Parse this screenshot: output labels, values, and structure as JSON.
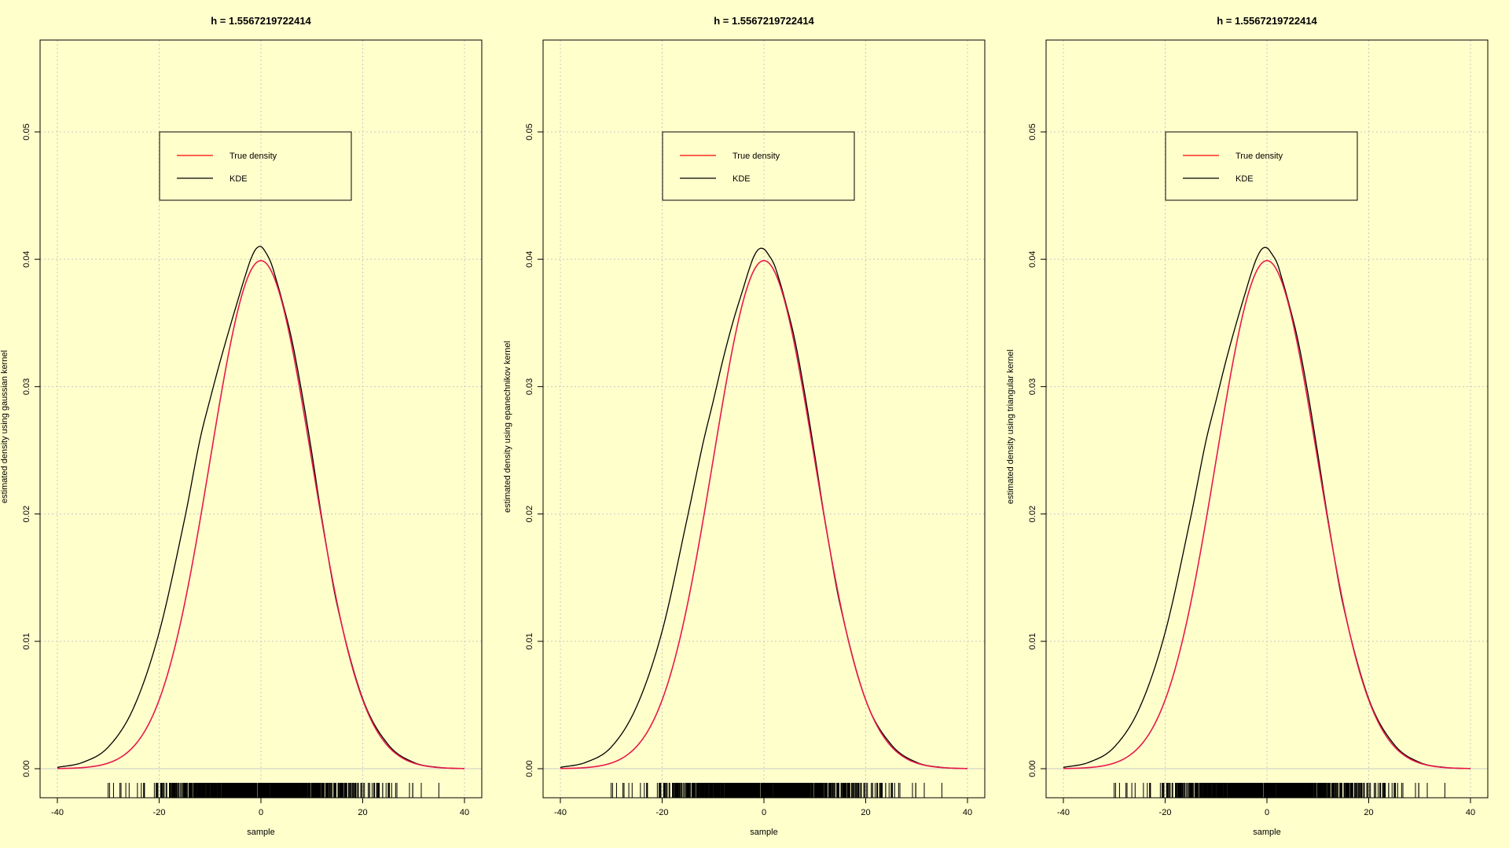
{
  "panels": [
    {
      "title": "h = 1.5567219722414",
      "xlabel": "sample",
      "ylabel": "estimated density using gaussian kernel"
    },
    {
      "title": "h = 1.5567219722414",
      "xlabel": "sample",
      "ylabel": "estimated density using epanechnikov kernel"
    },
    {
      "title": "h = 1.5567219722414",
      "xlabel": "sample",
      "ylabel": "estimated density using triangular kernel"
    }
  ],
  "legend": {
    "placement": "upper-center",
    "entries": [
      {
        "label": "True density",
        "color": "#ff0000"
      },
      {
        "label": "KDE",
        "color": "#000000"
      }
    ]
  },
  "colors": {
    "background": "#ffffcc",
    "true_density": "#e8194a",
    "kde": "#000000",
    "grid": "#c8c8c8"
  },
  "chart_data": [
    {
      "type": "line",
      "title": "h = 1.5567219722414",
      "xlabel": "sample",
      "ylabel": "estimated density using gaussian kernel",
      "xlim": [
        -40,
        40
      ],
      "ylim": [
        0,
        0.055
      ],
      "xticks": [
        -40,
        -20,
        0,
        20,
        40
      ],
      "yticks": [
        "0.00",
        "0.01",
        "0.02",
        "0.03",
        "0.04",
        "0.05"
      ],
      "grid": true,
      "series": [
        {
          "name": "True density",
          "distribution": "normal",
          "mean": 0,
          "sd": 10,
          "x_range": [
            -40,
            40
          ],
          "peak": 0.0399
        },
        {
          "name": "KDE",
          "x": [
            -40,
            -35,
            -30,
            -25,
            -20,
            -15,
            -12,
            -10,
            -8,
            -6,
            -4,
            -3,
            -2,
            -1,
            0,
            1,
            2,
            3,
            4,
            6,
            8,
            10,
            12,
            15,
            20,
            25,
            30,
            35,
            40
          ],
          "y": [
            0.0001,
            0.0005,
            0.0017,
            0.0048,
            0.0107,
            0.0196,
            0.0258,
            0.029,
            0.032,
            0.0348,
            0.0375,
            0.0388,
            0.04,
            0.0408,
            0.041,
            0.0405,
            0.0397,
            0.0384,
            0.037,
            0.0338,
            0.0296,
            0.0248,
            0.0196,
            0.0128,
            0.0055,
            0.0019,
            0.0005,
            0.0001,
            0.0
          ]
        }
      ],
      "rug": {
        "from": -34,
        "to": 36
      }
    },
    {
      "type": "line",
      "title": "h = 1.5567219722414",
      "xlabel": "sample",
      "ylabel": "estimated density using epanechnikov kernel",
      "xlim": [
        -40,
        40
      ],
      "ylim": [
        0,
        0.055
      ],
      "xticks": [
        -40,
        -20,
        0,
        20,
        40
      ],
      "yticks": [
        "0.00",
        "0.01",
        "0.02",
        "0.03",
        "0.04",
        "0.05"
      ],
      "grid": true,
      "series": [
        {
          "name": "True density",
          "distribution": "normal",
          "mean": 0,
          "sd": 10,
          "x_range": [
            -40,
            40
          ],
          "peak": 0.0399
        },
        {
          "name": "KDE",
          "x": [
            -40,
            -35,
            -30,
            -25,
            -20,
            -15,
            -12,
            -10,
            -8,
            -6,
            -4,
            -3,
            -2,
            -1,
            0,
            1,
            2,
            3,
            4,
            6,
            8,
            10,
            12,
            15,
            20,
            25,
            30,
            35,
            40
          ],
          "y": [
            0.0001,
            0.0005,
            0.0017,
            0.0049,
            0.0108,
            0.0198,
            0.0255,
            0.0288,
            0.0322,
            0.0352,
            0.0378,
            0.0391,
            0.0402,
            0.0408,
            0.0408,
            0.0403,
            0.0396,
            0.0384,
            0.037,
            0.0338,
            0.0295,
            0.0246,
            0.0195,
            0.0128,
            0.0054,
            0.0019,
            0.0005,
            0.0001,
            0.0
          ]
        }
      ],
      "rug": {
        "from": -34,
        "to": 36
      }
    },
    {
      "type": "line",
      "title": "h = 1.5567219722414",
      "xlabel": "sample",
      "ylabel": "estimated density using triangular kernel",
      "xlim": [
        -40,
        40
      ],
      "ylim": [
        0,
        0.055
      ],
      "xticks": [
        -40,
        -20,
        0,
        20,
        40
      ],
      "yticks": [
        "0.00",
        "0.01",
        "0.02",
        "0.03",
        "0.04",
        "0.05"
      ],
      "grid": true,
      "series": [
        {
          "name": "True density",
          "distribution": "normal",
          "mean": 0,
          "sd": 10,
          "x_range": [
            -40,
            40
          ],
          "peak": 0.0399
        },
        {
          "name": "KDE",
          "x": [
            -40,
            -35,
            -30,
            -25,
            -20,
            -15,
            -12,
            -10,
            -8,
            -6,
            -4,
            -3,
            -2,
            -1,
            0,
            1,
            2,
            3,
            4,
            6,
            8,
            10,
            12,
            15,
            20,
            25,
            30,
            35,
            40
          ],
          "y": [
            0.0001,
            0.0005,
            0.0017,
            0.0048,
            0.0107,
            0.0197,
            0.0257,
            0.0289,
            0.0321,
            0.035,
            0.0377,
            0.039,
            0.0401,
            0.0408,
            0.0409,
            0.0404,
            0.0397,
            0.0384,
            0.037,
            0.0338,
            0.0296,
            0.0247,
            0.0196,
            0.0128,
            0.0055,
            0.0019,
            0.0005,
            0.0001,
            0.0
          ]
        }
      ],
      "rug": {
        "from": -34,
        "to": 36
      }
    }
  ]
}
